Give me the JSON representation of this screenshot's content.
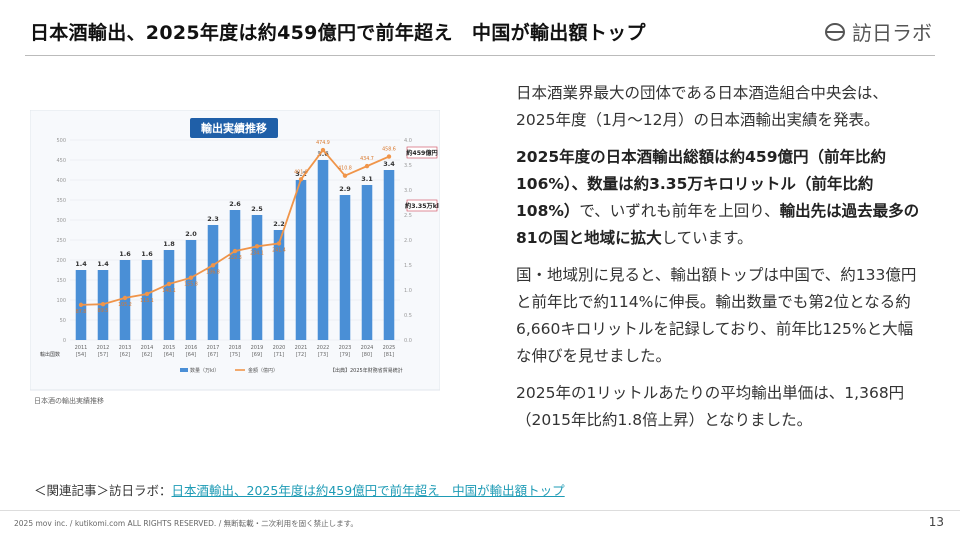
{
  "header": {
    "title": "日本酒輸出、2025年度は約459億円で前年超え　中国が輸出額トップ",
    "logo_text": "訪日ラボ"
  },
  "chart": {
    "panel_title": "輸出実績推移",
    "caption": "日本酒の輸出実績推移",
    "source": "【出典】2025年財務省貿易統計",
    "legend_qty": "数量（万kl）",
    "legend_amt": "金額（億円）",
    "row_label": "輸出国数",
    "callout_amount": "約459億円",
    "callout_volume": "約3.35万kl"
  },
  "chart_data": {
    "type": "bar",
    "categories": [
      "2011\n[54]",
      "2012\n[57]",
      "2013\n[62]",
      "2014\n[62]",
      "2015\n[64]",
      "2016\n[64]",
      "2017\n[67]",
      "2018\n[75]",
      "2019\n[69]",
      "2020\n[71]",
      "2021\n[72]",
      "2022\n[73]",
      "2023\n[79]",
      "2024\n[80]",
      "2025\n[81]"
    ],
    "x": [
      "2011",
      "2012",
      "2013",
      "2014",
      "2015",
      "2016",
      "2017",
      "2018",
      "2019",
      "2020",
      "2021",
      "2022",
      "2023",
      "2024",
      "2025"
    ],
    "country_counts": [
      "[54]",
      "[57]",
      "[62]",
      "[62]",
      "[64]",
      "[64]",
      "[67]",
      "[75]",
      "[69]",
      "[71]",
      "[72]",
      "[73]",
      "[79]",
      "[80]",
      "[81]"
    ],
    "series": [
      {
        "name": "数量（万kl）",
        "type": "bar",
        "axis": "right",
        "values": [
          1.4,
          1.4,
          1.6,
          1.6,
          1.8,
          2.0,
          2.3,
          2.6,
          2.5,
          2.2,
          3.2,
          3.6,
          2.9,
          3.1,
          3.4
        ]
      },
      {
        "name": "金額（億円）",
        "type": "line",
        "axis": "left",
        "values": [
          87.8,
          89.5,
          105.2,
          115.1,
          140.1,
          155.8,
          186.8,
          222.3,
          234.1,
          241.4,
          401.8,
          474.9,
          410.8,
          434.7,
          458.6
        ]
      }
    ],
    "ylim_left": [
      0,
      500
    ],
    "ylim_right": [
      0,
      4.0
    ],
    "yticks_left": [
      "0",
      "50",
      "100",
      "150",
      "200",
      "250",
      "300",
      "350",
      "400",
      "450",
      "500"
    ],
    "yticks_right": [
      "0.0",
      "0.5",
      "1.0",
      "1.5",
      "2.0",
      "2.5",
      "3.0",
      "3.5",
      "4.0"
    ],
    "grid": true,
    "legend_position": "bottom"
  },
  "body": {
    "p1": "日本酒業界最大の団体である日本酒造組合中央会は、2025年度（1月〜12月）の日本酒輸出実績を発表。",
    "p2_bold1": "2025年度の日本酒輸出総額は約459億円（前年比約106%）、数量は約3.35万キロリットル（前年比約108%）",
    "p2_mid": "で、いずれも前年を上回り、",
    "p2_bold2": "輸出先は過去最多の81の国と地域に拡大",
    "p2_end": "しています。",
    "p3": "国・地域別に見ると、輸出額トップは中国で、約133億円と前年比で約114%に伸長。輸出数量でも第2位となる約6,660キロリットルを記録しており、前年比125%と大幅な伸びを見せました。",
    "p4": "2025年の1リットルあたりの平均輸出単価は、1,368円（2015年比約1.8倍上昇）となりました。"
  },
  "related": {
    "prefix": "＜関連記事＞訪日ラボ：",
    "link_text": "日本酒輸出、2025年度は約459億円で前年超え　中国が輸出額トップ"
  },
  "footer": {
    "copyright": "2025 mov inc. / kutikomi.com ALL RIGHTS RESERVED. / 無断転載・二次利用を固く禁止します。",
    "page_number": "13"
  },
  "colors": {
    "bar": "#4a8fd6",
    "line": "#f0954a",
    "title_panel": "#1f5fa8",
    "link": "#1e9bb5"
  }
}
